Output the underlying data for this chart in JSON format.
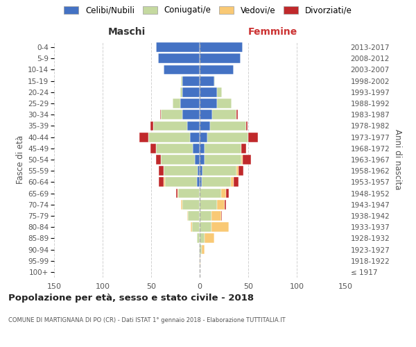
{
  "age_groups": [
    "100+",
    "95-99",
    "90-94",
    "85-89",
    "80-84",
    "75-79",
    "70-74",
    "65-69",
    "60-64",
    "55-59",
    "50-54",
    "45-49",
    "40-44",
    "35-39",
    "30-34",
    "25-29",
    "20-24",
    "15-19",
    "10-14",
    "5-9",
    "0-4"
  ],
  "birth_years": [
    "≤ 1917",
    "1918-1922",
    "1923-1927",
    "1928-1932",
    "1933-1937",
    "1938-1942",
    "1943-1947",
    "1948-1952",
    "1953-1957",
    "1958-1962",
    "1963-1967",
    "1968-1972",
    "1973-1977",
    "1978-1982",
    "1983-1987",
    "1988-1992",
    "1993-1997",
    "1998-2002",
    "2003-2007",
    "2008-2012",
    "2013-2017"
  ],
  "male_celibe": [
    0,
    0,
    0,
    0,
    0,
    0,
    0,
    0,
    3,
    2,
    5,
    7,
    10,
    13,
    18,
    20,
    18,
    18,
    37,
    43,
    45
  ],
  "male_coniugato": [
    0,
    0,
    1,
    3,
    8,
    12,
    18,
    22,
    33,
    35,
    35,
    38,
    43,
    35,
    22,
    8,
    2,
    1,
    0,
    0,
    0
  ],
  "male_vedovo": [
    0,
    0,
    0,
    0,
    1,
    1,
    1,
    1,
    1,
    0,
    0,
    0,
    0,
    0,
    0,
    0,
    0,
    0,
    0,
    0,
    0
  ],
  "male_divorziato": [
    0,
    0,
    0,
    0,
    0,
    0,
    0,
    1,
    5,
    5,
    5,
    6,
    9,
    3,
    1,
    0,
    0,
    0,
    0,
    0,
    0
  ],
  "female_celibe": [
    0,
    0,
    0,
    0,
    0,
    0,
    0,
    0,
    2,
    3,
    5,
    5,
    8,
    11,
    13,
    18,
    18,
    15,
    35,
    42,
    44
  ],
  "female_coniugato": [
    0,
    0,
    2,
    5,
    12,
    12,
    18,
    22,
    30,
    35,
    38,
    38,
    42,
    37,
    25,
    15,
    5,
    1,
    0,
    0,
    0
  ],
  "female_vedovo": [
    0,
    1,
    3,
    10,
    18,
    10,
    8,
    5,
    3,
    2,
    1,
    0,
    0,
    0,
    0,
    0,
    0,
    0,
    0,
    0,
    0
  ],
  "female_divorziato": [
    0,
    0,
    0,
    0,
    0,
    1,
    1,
    3,
    5,
    5,
    9,
    5,
    10,
    1,
    1,
    0,
    0,
    0,
    0,
    0,
    0
  ],
  "colors": {
    "celibe": "#4472c4",
    "coniugato": "#c5d9a0",
    "vedovo": "#f9c975",
    "divorziato": "#c0292b"
  },
  "title": "Popolazione per età, sesso e stato civile - 2018",
  "subtitle": "COMUNE DI MARTIGNANA DI PO (CR) - Dati ISTAT 1° gennaio 2018 - Elaborazione TUTTITALIA.IT",
  "label_maschi": "Maschi",
  "label_femmine": "Femmine",
  "ylabel_left": "Fasce di età",
  "ylabel_right": "Anni di nascita",
  "xlim": 150,
  "bg_color": "#ffffff",
  "grid_color": "#cccccc",
  "legend_labels": [
    "Celibi/Nubili",
    "Coniugati/e",
    "Vedovi/e",
    "Divorziati/e"
  ]
}
